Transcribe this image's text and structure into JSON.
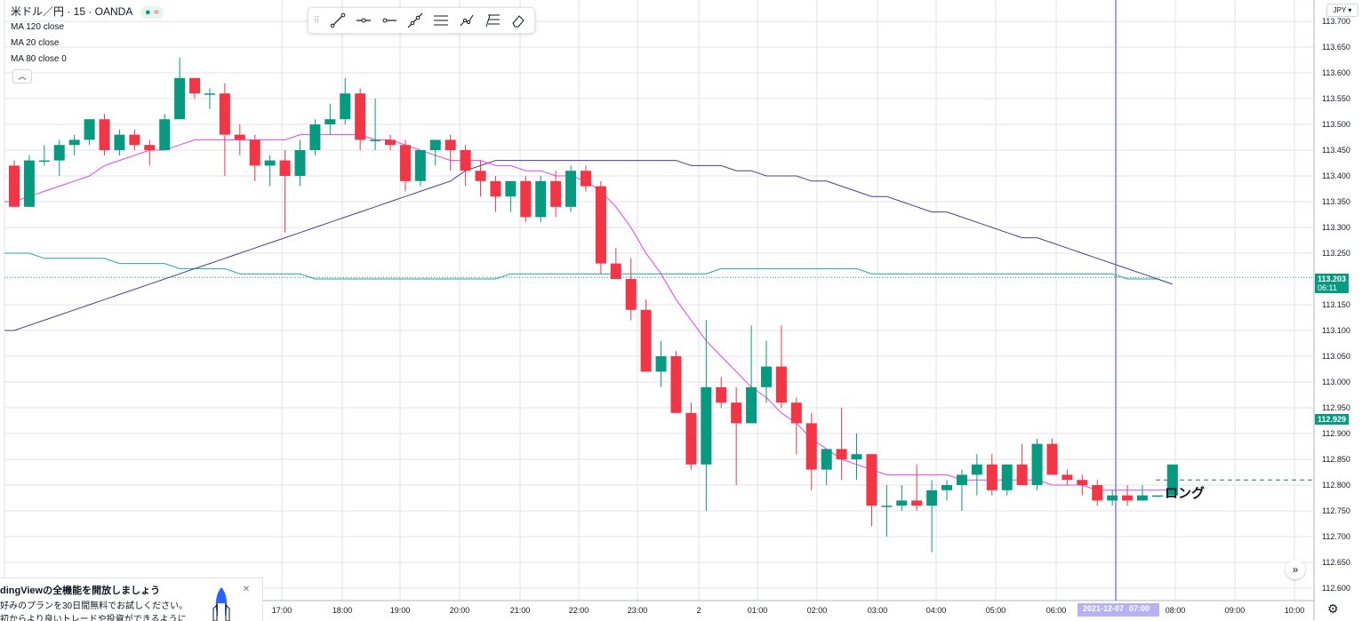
{
  "header": {
    "symbol": "米ドル／円 · 15 · OANDA",
    "status_dot": "●",
    "status_wave": "≈"
  },
  "indicators": [
    "MA 120 close",
    "MA 20 close",
    "MA 80 close 0"
  ],
  "collapse_icon": "chevron-up-icon",
  "toolbar": {
    "tools": [
      "trend-line-icon",
      "horizontal-ray-icon",
      "horizontal-ray-left-icon",
      "extended-line-icon",
      "parallel-channel-icon",
      "path-icon",
      "fib-retracement-icon",
      "eraser-icon"
    ]
  },
  "currency": "JPY",
  "price_axis": {
    "ticks": [
      "113.700",
      "113.650",
      "113.600",
      "113.550",
      "113.500",
      "113.450",
      "113.400",
      "113.350",
      "113.300",
      "113.250",
      "113.203",
      "113.150",
      "113.100",
      "113.050",
      "113.000",
      "112.950",
      "112.929",
      "112.900",
      "112.850",
      "112.800",
      "112.750",
      "112.700",
      "112.650",
      "112.600"
    ],
    "last_price": "113.203",
    "countdown": "06:11",
    "crosshair_price": "112.929",
    "colors": {
      "last_price_bg": "#089981",
      "crosshair_bg": "#089981"
    }
  },
  "time_axis": {
    "labels": [
      "17:00",
      "18:00",
      "19:00",
      "20:00",
      "21:00",
      "22:00",
      "23:00",
      "2",
      "01:00",
      "02:00",
      "03:00",
      "04:00",
      "05:00",
      "06:00",
      "07:00",
      "08:00",
      "09:00",
      "10:00"
    ],
    "crosshair_date": "2021-12-07",
    "crosshair_time": "07:00"
  },
  "annotation": {
    "label": "ロング",
    "price": 112.81
  },
  "promo": {
    "title": "dingViewの全機能を開放しましょう",
    "line1": "好みのプランを30日間無料でお試しください。",
    "line2": "初からより良いトレードや投資ができるように",
    "close_icon": "close-icon"
  },
  "buttons": {
    "scroll": "»",
    "settings_icon": "gear-icon"
  },
  "colors": {
    "up": "#089981",
    "down": "#f23645",
    "ma20": "#e040fb",
    "ma80": "#4a3f8f",
    "ma120": "#26a69a",
    "crosshair": "#6a5ff0",
    "long_line": "#2e7d32"
  },
  "chart_data": {
    "type": "candlestick",
    "symbol": "USDJPY",
    "interval": "15",
    "ylim": [
      112.58,
      113.72
    ],
    "candles": [
      [
        113.42,
        113.43,
        113.34,
        113.34
      ],
      [
        113.34,
        113.44,
        113.34,
        113.43
      ],
      [
        113.43,
        113.46,
        113.42,
        113.43
      ],
      [
        113.43,
        113.47,
        113.4,
        113.46
      ],
      [
        113.46,
        113.48,
        113.44,
        113.47
      ],
      [
        113.47,
        113.51,
        113.46,
        113.51
      ],
      [
        113.51,
        113.52,
        113.44,
        113.45
      ],
      [
        113.45,
        113.49,
        113.44,
        113.48
      ],
      [
        113.48,
        113.49,
        113.45,
        113.46
      ],
      [
        113.46,
        113.47,
        113.42,
        113.45
      ],
      [
        113.45,
        113.52,
        113.45,
        113.51
      ],
      [
        113.51,
        113.63,
        113.51,
        113.59
      ],
      [
        113.59,
        113.59,
        113.55,
        113.56
      ],
      [
        113.56,
        113.57,
        113.53,
        113.56
      ],
      [
        113.56,
        113.58,
        113.4,
        113.48
      ],
      [
        113.48,
        113.5,
        113.44,
        113.47
      ],
      [
        113.47,
        113.48,
        113.39,
        113.42
      ],
      [
        113.42,
        113.44,
        113.38,
        113.43
      ],
      [
        113.43,
        113.45,
        113.29,
        113.4
      ],
      [
        113.4,
        113.47,
        113.38,
        113.45
      ],
      [
        113.45,
        113.51,
        113.44,
        113.5
      ],
      [
        113.5,
        113.54,
        113.48,
        113.51
      ],
      [
        113.51,
        113.59,
        113.5,
        113.56
      ],
      [
        113.56,
        113.57,
        113.45,
        113.47
      ],
      [
        113.47,
        113.55,
        113.45,
        113.47
      ],
      [
        113.47,
        113.48,
        113.45,
        113.46
      ],
      [
        113.46,
        113.47,
        113.37,
        113.39
      ],
      [
        113.39,
        113.44,
        113.38,
        113.45
      ],
      [
        113.45,
        113.46,
        113.42,
        113.47
      ],
      [
        113.47,
        113.48,
        113.41,
        113.45
      ],
      [
        113.45,
        113.46,
        113.38,
        113.41
      ],
      [
        113.41,
        113.43,
        113.36,
        113.39
      ],
      [
        113.39,
        113.4,
        113.33,
        113.36
      ],
      [
        113.36,
        113.39,
        113.33,
        113.39
      ],
      [
        113.39,
        113.4,
        113.31,
        113.32
      ],
      [
        113.32,
        113.4,
        113.31,
        113.39
      ],
      [
        113.39,
        113.41,
        113.32,
        113.34
      ],
      [
        113.34,
        113.42,
        113.33,
        113.41
      ],
      [
        113.41,
        113.42,
        113.37,
        113.38
      ],
      [
        113.38,
        113.39,
        113.21,
        113.23
      ],
      [
        113.23,
        113.26,
        113.2,
        113.2
      ],
      [
        113.2,
        113.24,
        113.12,
        113.14
      ],
      [
        113.14,
        113.16,
        113.02,
        113.02
      ],
      [
        113.02,
        113.08,
        112.99,
        113.05
      ],
      [
        113.05,
        113.06,
        112.94,
        112.94
      ],
      [
        112.94,
        112.96,
        112.83,
        112.84
      ],
      [
        112.84,
        113.12,
        112.75,
        112.99
      ],
      [
        112.99,
        113.01,
        112.95,
        112.96
      ],
      [
        112.96,
        112.99,
        112.8,
        112.92
      ],
      [
        112.92,
        113.11,
        112.93,
        112.99
      ],
      [
        112.99,
        113.08,
        112.96,
        113.03
      ],
      [
        113.03,
        113.11,
        112.95,
        112.96
      ],
      [
        112.96,
        112.97,
        112.86,
        112.92
      ],
      [
        112.92,
        112.94,
        112.79,
        112.83
      ],
      [
        112.83,
        112.87,
        112.8,
        112.87
      ],
      [
        112.87,
        112.95,
        112.81,
        112.85
      ],
      [
        112.85,
        112.9,
        112.81,
        112.86
      ],
      [
        112.86,
        112.86,
        112.72,
        112.76
      ],
      [
        112.76,
        112.8,
        112.7,
        112.76
      ],
      [
        112.76,
        112.8,
        112.75,
        112.77
      ],
      [
        112.77,
        112.84,
        112.75,
        112.76
      ],
      [
        112.76,
        112.81,
        112.67,
        112.79
      ],
      [
        112.79,
        112.81,
        112.77,
        112.8
      ],
      [
        112.8,
        112.83,
        112.75,
        112.82
      ],
      [
        112.82,
        112.86,
        112.78,
        112.84
      ],
      [
        112.84,
        112.86,
        112.78,
        112.79
      ],
      [
        112.79,
        112.84,
        112.78,
        112.84
      ],
      [
        112.84,
        112.88,
        112.8,
        112.8
      ],
      [
        112.8,
        112.89,
        112.79,
        112.88
      ],
      [
        112.88,
        112.89,
        112.82,
        112.82
      ],
      [
        112.82,
        112.83,
        112.8,
        112.81
      ],
      [
        112.81,
        112.82,
        112.78,
        112.8
      ],
      [
        112.8,
        112.81,
        112.76,
        112.77
      ],
      [
        112.77,
        112.79,
        112.76,
        112.78
      ],
      [
        112.78,
        112.8,
        112.76,
        112.77
      ],
      [
        112.77,
        112.8,
        112.77,
        112.78
      ],
      [
        112.78,
        112.78,
        112.78,
        112.78
      ],
      [
        112.78,
        112.84,
        112.78,
        112.84
      ]
    ],
    "ma20": [
      113.35,
      113.36,
      113.37,
      113.38,
      113.39,
      113.4,
      113.42,
      113.43,
      113.44,
      113.45,
      113.45,
      113.46,
      113.47,
      113.47,
      113.47,
      113.47,
      113.47,
      113.47,
      113.47,
      113.48,
      113.48,
      113.48,
      113.48,
      113.48,
      113.47,
      113.47,
      113.46,
      113.45,
      113.44,
      113.43,
      113.43,
      113.43,
      113.42,
      113.42,
      113.41,
      113.41,
      113.4,
      113.4,
      113.39,
      113.37,
      113.34,
      113.3,
      113.25,
      113.21,
      113.16,
      113.12,
      113.08,
      113.05,
      113.02,
      112.99,
      112.97,
      112.94,
      112.92,
      112.89,
      112.87,
      112.85,
      112.84,
      112.83,
      112.82,
      112.82,
      112.82,
      112.82,
      112.82,
      112.81,
      112.81,
      112.81,
      112.81,
      112.81,
      112.81,
      112.8,
      112.8,
      112.8,
      112.79,
      112.79,
      112.79,
      112.79,
      112.79,
      112.79
    ],
    "ma80": [
      113.1,
      113.11,
      113.12,
      113.13,
      113.14,
      113.15,
      113.16,
      113.17,
      113.18,
      113.19,
      113.2,
      113.21,
      113.22,
      113.23,
      113.24,
      113.25,
      113.26,
      113.27,
      113.28,
      113.29,
      113.3,
      113.31,
      113.32,
      113.33,
      113.34,
      113.35,
      113.36,
      113.37,
      113.38,
      113.39,
      113.41,
      113.42,
      113.43,
      113.43,
      113.43,
      113.43,
      113.43,
      113.43,
      113.43,
      113.43,
      113.43,
      113.43,
      113.43,
      113.43,
      113.43,
      113.42,
      113.42,
      113.42,
      113.41,
      113.41,
      113.4,
      113.4,
      113.4,
      113.39,
      113.39,
      113.38,
      113.37,
      113.36,
      113.36,
      113.35,
      113.34,
      113.33,
      113.33,
      113.32,
      113.31,
      113.3,
      113.29,
      113.28,
      113.28,
      113.27,
      113.26,
      113.25,
      113.24,
      113.23,
      113.22,
      113.21,
      113.2,
      113.19
    ],
    "ma120": [
      113.25,
      113.25,
      113.24,
      113.24,
      113.24,
      113.24,
      113.24,
      113.23,
      113.23,
      113.23,
      113.23,
      113.22,
      113.22,
      113.22,
      113.22,
      113.21,
      113.21,
      113.21,
      113.21,
      113.21,
      113.2,
      113.2,
      113.2,
      113.2,
      113.2,
      113.2,
      113.2,
      113.2,
      113.2,
      113.2,
      113.2,
      113.2,
      113.2,
      113.21,
      113.21,
      113.21,
      113.21,
      113.21,
      113.21,
      113.21,
      113.21,
      113.21,
      113.21,
      113.21,
      113.21,
      113.21,
      113.21,
      113.22,
      113.22,
      113.22,
      113.22,
      113.22,
      113.22,
      113.22,
      113.22,
      113.22,
      113.22,
      113.21,
      113.21,
      113.21,
      113.21,
      113.21,
      113.21,
      113.21,
      113.21,
      113.21,
      113.21,
      113.21,
      113.21,
      113.21,
      113.21,
      113.21,
      113.21,
      113.21,
      113.2,
      113.2,
      113.2,
      113.19
    ]
  }
}
